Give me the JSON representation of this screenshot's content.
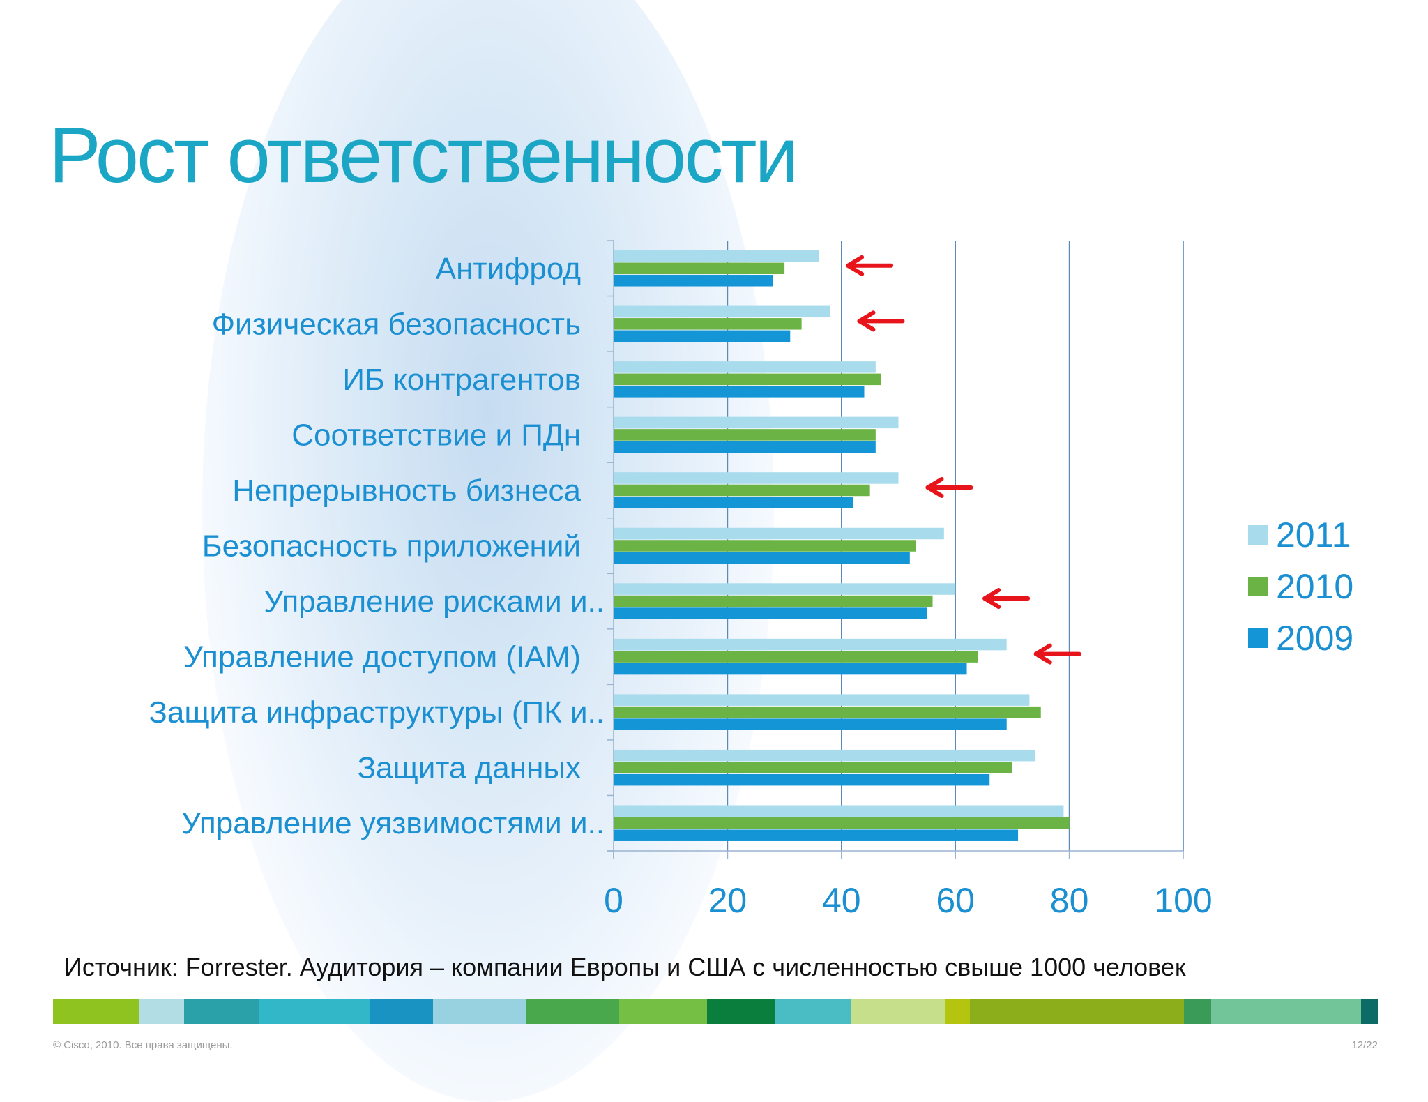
{
  "slide": {
    "title": "Рост ответственности",
    "source": "Источник: Forrester. Аудитория – компании Европы и США с численностью свыше 1000 человек",
    "copyright": "© Cisco, 2010. Все права защищены.",
    "page": "12/22"
  },
  "colors": {
    "title": "#1aa6c4",
    "category_text": "#1a8fd1",
    "axis_text": "#1a8fd1",
    "arrow": "#e8141b"
  },
  "chart_data": {
    "type": "bar",
    "orientation": "horizontal",
    "categories": [
      "Антифрод",
      "Физическая безопасность",
      "ИБ контрагентов",
      "Соответствие и ПДн",
      "Непрерывность бизнеса",
      "Безопасность приложений",
      "Управление рисками и..",
      "Управление доступом (IAM)",
      "Защита инфраструктуры (ПК и..",
      "Защита данных",
      "Управление уязвимостями и.."
    ],
    "series": [
      {
        "name": "2011",
        "color": "#a8dced",
        "values": [
          36,
          38,
          46,
          50,
          50,
          58,
          60,
          69,
          73,
          74,
          79
        ]
      },
      {
        "name": "2010",
        "color": "#6ab344",
        "values": [
          30,
          33,
          47,
          46,
          45,
          53,
          56,
          64,
          75,
          70,
          80
        ]
      },
      {
        "name": "2009",
        "color": "#1496d6",
        "values": [
          28,
          31,
          44,
          46,
          42,
          52,
          55,
          62,
          69,
          66,
          71
        ]
      }
    ],
    "xlim": [
      0,
      100
    ],
    "xticks": [
      0,
      20,
      40,
      60,
      80,
      100
    ],
    "grid": true,
    "legend_position": "right",
    "highlighted_categories": [
      "Антифрод",
      "Физическая безопасность",
      "Непрерывность бизнеса",
      "Управление рисками и..",
      "Управление доступом (IAM)"
    ]
  },
  "legend": [
    {
      "label": "2011",
      "color": "#a8dced"
    },
    {
      "label": "2010",
      "color": "#6ab344"
    },
    {
      "label": "2009",
      "color": "#1496d6"
    }
  ],
  "band_colors": [
    "#8fc31f",
    "#b3dde5",
    "#2aa1a8",
    "#32b7c8",
    "#1893c2",
    "#98d1e0",
    "#49a84c",
    "#74bf44",
    "#0a7f3d",
    "#49bcc4",
    "#c6df8b",
    "#b5c50f",
    "#8cae1a",
    "#3a9a57",
    "#72c598",
    "#0c6b64"
  ]
}
